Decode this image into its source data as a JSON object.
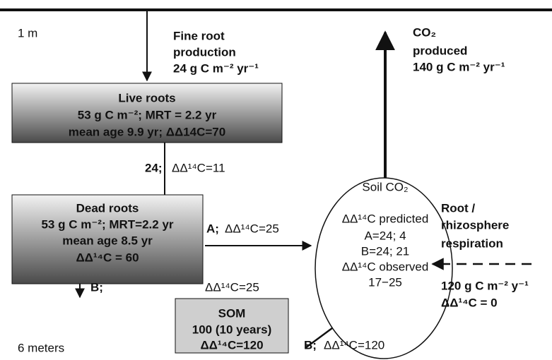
{
  "depth_top": "1 m",
  "depth_bottom": "6 meters",
  "fine_root_production": [
    "Fine root",
    "production",
    "24 g C m⁻² yr⁻¹"
  ],
  "live_roots": [
    "Live roots",
    "53 g C m⁻²; MRT = 2.2 yr",
    "mean age 9.9 yr; ΔΔ14C=70"
  ],
  "live_to_dead": {
    "flux": "24;",
    "label": "ΔΔ¹⁴C=11"
  },
  "dead_roots": [
    "Dead roots",
    "53 g C m⁻²; MRT=2.2 yr",
    "mean age 8.5 yr",
    "ΔΔ¹⁴C = 60"
  ],
  "path_a": {
    "flux": "A;",
    "label": "ΔΔ¹⁴C=25"
  },
  "path_b_dead": {
    "flux": "B;",
    "label": "ΔΔ¹⁴C=25"
  },
  "som": [
    "SOM",
    "100 (10 years)",
    "ΔΔ¹⁴C=120"
  ],
  "path_b_som": {
    "flux": "B;",
    "label": "ΔΔ¹⁴C=120"
  },
  "soil_co2": [
    "Soil CO₂",
    "ΔΔ¹⁴C predicted",
    "A=24; 4",
    "B=24; 21",
    "ΔΔ¹⁴C observed",
    "17−25"
  ],
  "co2_produced": [
    "CO₂",
    "produced",
    "140 g C m⁻² yr⁻¹"
  ],
  "root_respiration": [
    "Root /",
    "rhizosphere",
    "respiration",
    "120 g C m⁻² y⁻¹",
    "ΔΔ¹⁴C = 0"
  ]
}
